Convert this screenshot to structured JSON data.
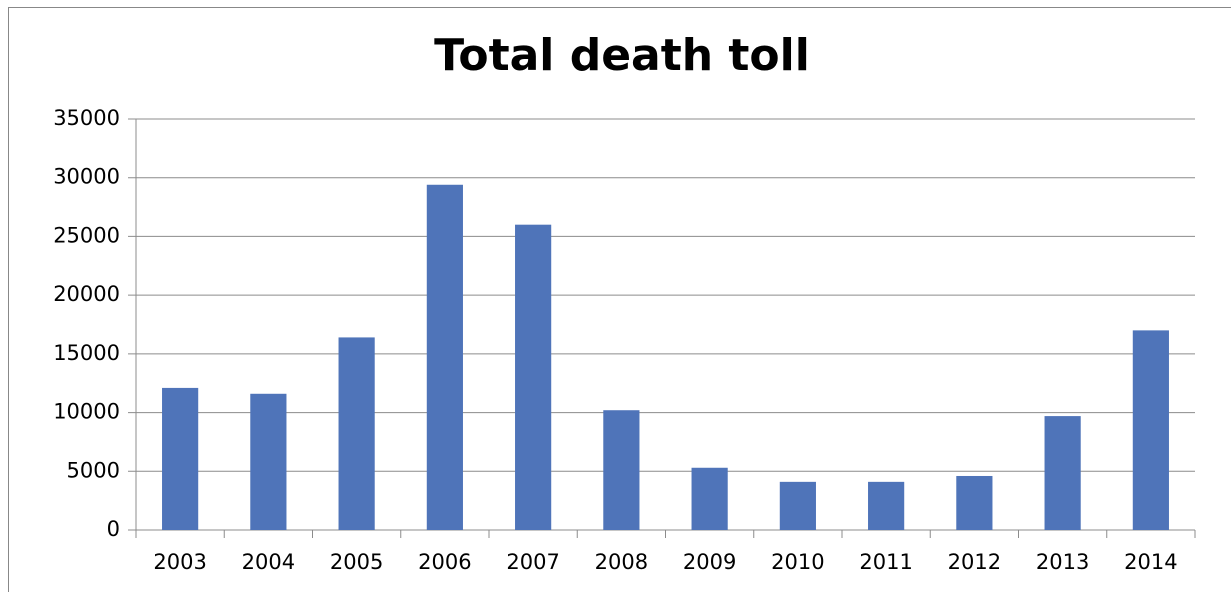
{
  "chart_data": {
    "type": "bar",
    "title": "Total death toll",
    "categories": [
      "2003",
      "2004",
      "2005",
      "2006",
      "2007",
      "2008",
      "2009",
      "2010",
      "2011",
      "2012",
      "2013",
      "2014"
    ],
    "values": [
      12100,
      11600,
      16400,
      29400,
      26000,
      10200,
      5300,
      4100,
      4100,
      4600,
      9700,
      17000
    ],
    "color": "#4f74b9",
    "ylim": [
      0,
      35000
    ],
    "yticks": [
      0,
      5000,
      10000,
      15000,
      20000,
      25000,
      30000,
      35000
    ],
    "grid": true
  }
}
